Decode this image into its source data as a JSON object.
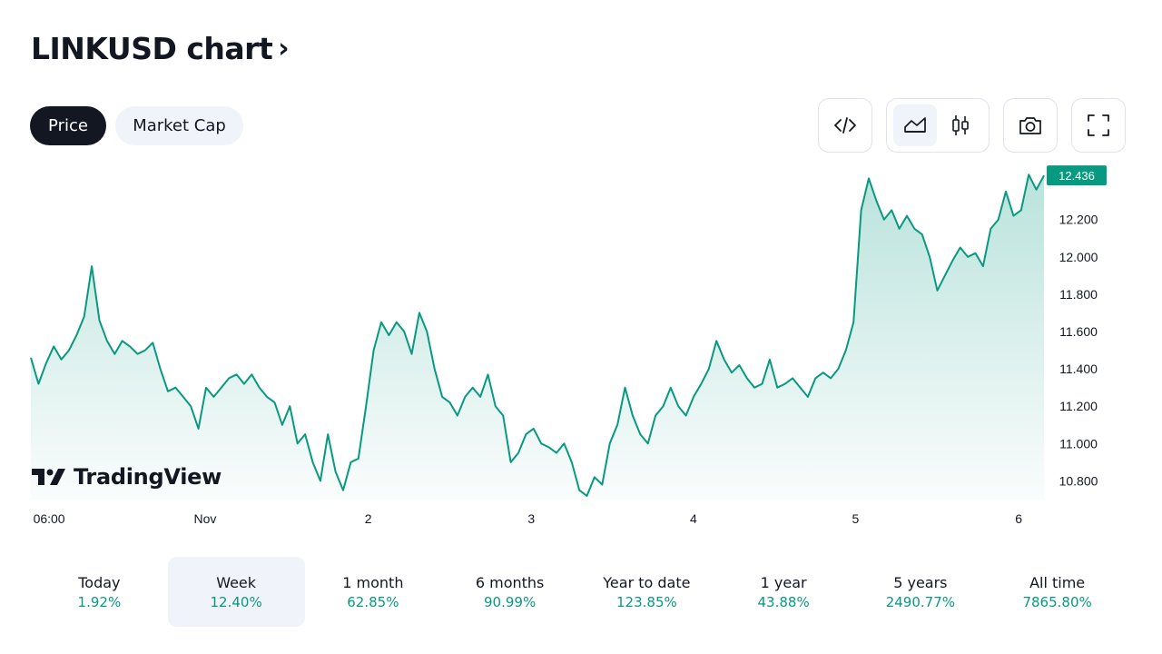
{
  "header": {
    "title": "LINKUSD chart",
    "title_chevron": "›"
  },
  "tabs": [
    {
      "label": "Price",
      "active": true
    },
    {
      "label": "Market Cap",
      "active": false
    }
  ],
  "toolbar": {
    "embed_icon": "code-icon",
    "area_icon": "area-chart-icon",
    "candle_icon": "candlestick-icon",
    "camera_icon": "camera-icon",
    "fullscreen_icon": "fullscreen-icon",
    "active_chart_style": "area"
  },
  "branding": {
    "logo_text": "TradingView"
  },
  "colors": {
    "line": "#089981",
    "price_label_bg": "#089981",
    "positive": "#089981",
    "active_tab_bg": "#131722",
    "chip_bg": "#f0f3fa"
  },
  "chart_data": {
    "type": "area",
    "symbol": "LINKUSD",
    "x_tick_labels": [
      "06:00",
      "Nov",
      "2",
      "3",
      "4",
      "5",
      "6"
    ],
    "y_tick_labels": [
      "12.200",
      "12.000",
      "11.800",
      "11.600",
      "11.400",
      "11.200",
      "11.000",
      "10.800"
    ],
    "ylim": [
      10.7,
      12.5
    ],
    "last_price": "12.436",
    "grid": false,
    "series": [
      {
        "values": [
          11.46,
          11.32,
          11.43,
          11.52,
          11.45,
          11.5,
          11.58,
          11.68,
          11.95,
          11.66,
          11.55,
          11.48,
          11.55,
          11.52,
          11.48,
          11.5,
          11.54,
          11.4,
          11.28,
          11.3,
          11.25,
          11.2,
          11.08,
          11.3,
          11.25,
          11.3,
          11.35,
          11.37,
          11.32,
          11.37,
          11.3,
          11.25,
          11.22,
          11.1,
          11.2,
          11.0,
          11.05,
          10.9,
          10.8,
          11.05,
          10.85,
          10.75,
          10.9,
          10.92,
          11.2,
          11.5,
          11.65,
          11.58,
          11.65,
          11.6,
          11.48,
          11.7,
          11.6,
          11.4,
          11.25,
          11.22,
          11.15,
          11.25,
          11.3,
          11.25,
          11.37,
          11.2,
          11.15,
          10.9,
          10.95,
          11.05,
          11.08,
          11.0,
          10.98,
          10.95,
          11.0,
          10.9,
          10.75,
          10.72,
          10.82,
          10.78,
          11.0,
          11.1,
          11.3,
          11.15,
          11.05,
          11.0,
          11.15,
          11.2,
          11.3,
          11.2,
          11.15,
          11.25,
          11.32,
          11.4,
          11.55,
          11.45,
          11.38,
          11.42,
          11.35,
          11.3,
          11.32,
          11.45,
          11.3,
          11.32,
          11.35,
          11.3,
          11.25,
          11.35,
          11.38,
          11.35,
          11.4,
          11.5,
          11.65,
          12.25,
          12.42,
          12.3,
          12.2,
          12.25,
          12.15,
          12.22,
          12.15,
          12.12,
          12.0,
          11.82,
          11.9,
          11.98,
          12.05,
          12.0,
          12.02,
          11.95,
          12.15,
          12.2,
          12.35,
          12.22,
          12.25,
          12.44,
          12.36,
          12.436
        ]
      }
    ]
  },
  "periods": [
    {
      "label": "Today",
      "value": "1.92%",
      "active": false
    },
    {
      "label": "Week",
      "value": "12.40%",
      "active": true
    },
    {
      "label": "1 month",
      "value": "62.85%",
      "active": false
    },
    {
      "label": "6 months",
      "value": "90.99%",
      "active": false
    },
    {
      "label": "Year to date",
      "value": "123.85%",
      "active": false
    },
    {
      "label": "1 year",
      "value": "43.88%",
      "active": false
    },
    {
      "label": "5 years",
      "value": "2490.77%",
      "active": false
    },
    {
      "label": "All time",
      "value": "7865.80%",
      "active": false
    }
  ]
}
